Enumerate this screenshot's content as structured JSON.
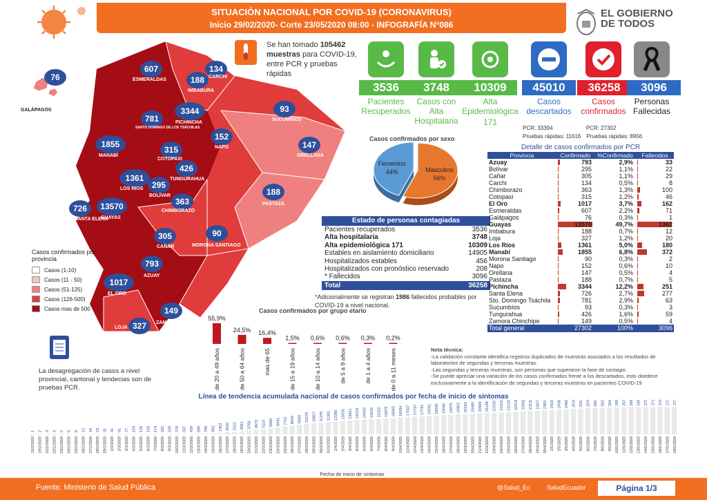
{
  "header": {
    "title": "SITUACIÓN NACIONAL POR  COVID-19 (CORONAVIRUS)",
    "subtitle": "Inicio 29/02/2020- Corte 23/05/2020 08:00  - INFOGRAFÍA N°086"
  },
  "gov_logo": {
    "text": "EL GOBIERNO DE TODOS"
  },
  "samples": {
    "prefix": "Se han tomado",
    "count": "105462",
    "bold": "muestras",
    "rest": "para COVID-19, entre PCR y pruebas rápidas"
  },
  "stats": [
    {
      "value": "3536",
      "label": "Pacientes Recuperados",
      "color": "#59b947",
      "icon": "recovered-icon"
    },
    {
      "value": "3748",
      "label": "Casos con Alta Hospitalaria",
      "color": "#59b947",
      "icon": "hospital-discharge-icon"
    },
    {
      "value": "10309",
      "label": "Alta Epidemiológica",
      "extra": "171",
      "color": "#59b947",
      "icon": "epidemiological-icon"
    },
    {
      "value": "45010",
      "label": "Casos descartados",
      "color": "#2e6bc4",
      "icon": "discarded-icon"
    },
    {
      "value": "36258",
      "label": "Casos confirmados",
      "color": "#e0202b",
      "icon": "confirmed-icon"
    },
    {
      "value": "3096",
      "label": "Personas Fallecidas",
      "color": "#555555",
      "icon": "mourning-ribbon-icon"
    }
  ],
  "pcr_info": {
    "pcr_desc": "PCR: 33394",
    "pcr_conf": "PCR: 27302",
    "rapid_desc": "Pruebas rápidas: 11616",
    "rapid_conf": "Pruebas rápidas: 8956"
  },
  "map": {
    "bubbles": [
      {
        "v": "76"
      },
      {
        "v": "607"
      },
      {
        "v": "134"
      },
      {
        "v": "188"
      },
      {
        "v": "781"
      },
      {
        "v": "3344"
      },
      {
        "v": "93"
      },
      {
        "v": "1855"
      },
      {
        "v": "315"
      },
      {
        "v": "152"
      },
      {
        "v": "147"
      },
      {
        "v": "426"
      },
      {
        "v": "1361"
      },
      {
        "v": "295"
      },
      {
        "v": "188"
      },
      {
        "v": "726"
      },
      {
        "v": "13570"
      },
      {
        "v": "363"
      },
      {
        "v": "305"
      },
      {
        "v": "90"
      },
      {
        "v": "793"
      },
      {
        "v": "1017"
      },
      {
        "v": "149"
      },
      {
        "v": "327"
      }
    ],
    "labels": [
      "GALÁPAGOS",
      "ESMERALDAS",
      "CARCHI",
      "IMBABURA",
      "SANTO DOMINGO DE LOS TSÁCHILAS",
      "PICHINCHA",
      "SUCUMBÍOS",
      "MANABÍ",
      "COTOPAXI",
      "NAPO",
      "ORELLANA",
      "TUNGURAHUA",
      "LOS RIOS",
      "BOLÍVAR",
      "PASTAZA",
      "SANTA ELENA",
      "GUAYAS",
      "CHIMBORAZO",
      "CAÑAR",
      "MORONA SANTIAGO",
      "AZUAY",
      "EL ORO",
      "ZAMORA CHINCHIPE",
      "LOJA"
    ]
  },
  "legend": {
    "title": "Casos confirmados por provincia",
    "items": [
      {
        "label": "Casos (1-10)",
        "color": "#ffffff"
      },
      {
        "label": "Casos (11 - 50)",
        "color": "#f7c1c1"
      },
      {
        "label": "Casos (51-125)",
        "color": "#f08080"
      },
      {
        "label": "Casos (126-500)",
        "color": "#e03c3c"
      },
      {
        "label": "Casos mas de 500",
        "color": "#a50d15"
      }
    ]
  },
  "sex_chart": {
    "title": "Casos confirmados por sexo",
    "slices": [
      {
        "label": "Masculino",
        "pct": "56%",
        "value": 56,
        "color": "#e8772e"
      },
      {
        "label": "Femenino",
        "pct": "44%",
        "value": 44,
        "color": "#5b9bd5"
      }
    ]
  },
  "status_table": {
    "title": "Estado de personas contagiadas",
    "rows": [
      {
        "label": "Pacientes recuperados",
        "value": "3536",
        "bold": false
      },
      {
        "label": "Alta hospitalaria",
        "value": "3748",
        "bold": true
      },
      {
        "label": "Alta epidemiológica 171",
        "value": "10309",
        "bold": true
      },
      {
        "label": "Estables en aislamiento domiciliario",
        "value": "14905",
        "bold": false
      },
      {
        "label": "Hospitalizados estables",
        "value": "456",
        "bold": false
      },
      {
        "label": "Hospitalizados con pronóstico reservado",
        "value": "208",
        "bold": false
      },
      {
        "label": "* Fallecidos",
        "value": "3096",
        "bold": false
      }
    ],
    "total_label": "Total",
    "total_value": "36258"
  },
  "death_note": {
    "pre": "*Adicionalmente se registran",
    "num": "1986",
    "post": "fallecidos probables por COVID-19 a nivel nacional."
  },
  "age_chart": {
    "title": "Casos confirmados por grupo etario",
    "groups": [
      {
        "label": "de 20 a 49 años",
        "pct": "55,9%",
        "value": 55.9
      },
      {
        "label": "de 50 a 64 años",
        "pct": "24,5%",
        "value": 24.5
      },
      {
        "label": "mas de 65",
        "pct": "16,4%",
        "value": 16.4
      },
      {
        "label": "de 15 a 19 años",
        "pct": "1,5%",
        "value": 1.5
      },
      {
        "label": "de 10 a 14 años",
        "pct": "0,6%",
        "value": 0.6
      },
      {
        "label": "de 5 a 9 años",
        "pct": "0,6%",
        "value": 0.6
      },
      {
        "label": "de 1 a 4 años",
        "pct": "0,3%",
        "value": 0.3
      },
      {
        "label": "de 0 a 11 meses",
        "pct": "0,2%",
        "value": 0.2
      }
    ]
  },
  "pcr_note": {
    "text": "La desagregación de casos a nivel provincial, cantonal y tendecias son de pruebas PCR."
  },
  "prov_table": {
    "caption": "Detalle de casos confirmados por PCR",
    "headers": [
      "Provincia",
      "Confirmado",
      "%Confirmado",
      "Fallecidos"
    ],
    "rows": [
      [
        "Azuay",
        "793",
        "2,9%",
        "33",
        true
      ],
      [
        "Bolívar",
        "295",
        "1,1%",
        "22",
        false
      ],
      [
        "Cañar",
        "305",
        "1,1%",
        "29",
        false
      ],
      [
        "Carchi",
        "134",
        "0,5%",
        "8",
        false
      ],
      [
        "Chimborazo",
        "363",
        "1,3%",
        "100",
        false
      ],
      [
        "Cotopaxi",
        "315",
        "1,2%",
        "46",
        false
      ],
      [
        "El Oro",
        "1017",
        "3,7%",
        "162",
        true
      ],
      [
        "Esmeraldas",
        "607",
        "2,2%",
        "71",
        false
      ],
      [
        "Galápagos",
        "76",
        "0,3%",
        "1",
        false
      ],
      [
        "Guayas",
        "13570",
        "49,7%",
        "1362",
        true
      ],
      [
        "Imbabura",
        "188",
        "0,7%",
        "12",
        false
      ],
      [
        "Loja",
        "327",
        "1,2%",
        "20",
        false
      ],
      [
        "Los Ríos",
        "1361",
        "5,0%",
        "180",
        true
      ],
      [
        "Manabí",
        "1855",
        "6,8%",
        "372",
        true
      ],
      [
        "Morona Santiago",
        "90",
        "0,3%",
        "2",
        false
      ],
      [
        "Napo",
        "152",
        "0,6%",
        "10",
        false
      ],
      [
        "Orellana",
        "147",
        "0,5%",
        "4",
        false
      ],
      [
        "Pastaza",
        "188",
        "0,7%",
        "5",
        false
      ],
      [
        "Pichincha",
        "3344",
        "12,2%",
        "251",
        true
      ],
      [
        "Santa Elena",
        "726",
        "2,7%",
        "277",
        false
      ],
      [
        "Sto. Domingo Tsáchila",
        "781",
        "2,9%",
        "63",
        false
      ],
      [
        "Sucumbíos",
        "93",
        "0,3%",
        "3",
        false
      ],
      [
        "Tungurahua",
        "426",
        "1,6%",
        "59",
        false
      ],
      [
        "Zamora Chinchipe",
        "149",
        "0,5%",
        "4",
        false
      ]
    ],
    "total": [
      "Total general",
      "27302",
      "100%",
      "3096"
    ]
  },
  "nota": {
    "title": "Nota técnica:",
    "lines": [
      "-La validación constante identifica registros duplicados de muestras asociados a los resultados de laboratorios de segundas y terceras muestras.",
      "-Las segundas y terceras muestras, son personas que superaron la fase de contagio.",
      "-Se puede apreciar una variación de los casos confirmados frente a los descartados, esto obedece exclusivamente a la identificación de segundas y terceras muestras en pacientes COVID-19"
    ]
  },
  "chart_data": [
    {
      "type": "pie",
      "title": "Casos confirmados por sexo",
      "categories": [
        "Masculino",
        "Femenino"
      ],
      "values": [
        56,
        44
      ]
    },
    {
      "type": "bar",
      "title": "Casos confirmados por grupo etario",
      "categories": [
        "de 20 a 49 años",
        "de 50 a 64 años",
        "mas de 65",
        "de 15 a 19 años",
        "de 10 a 14 años",
        "de 5 a 9 años",
        "de 1 a 4 años",
        "de 0 a 11 meses"
      ],
      "values": [
        55.9,
        24.5,
        16.4,
        1.5,
        0.6,
        0.6,
        0.3,
        0.2
      ]
    },
    {
      "type": "bar",
      "title": "Línea de tendencia acumulada nacional de casos confirmados por fecha de inicio de síntomas",
      "xlabel": "Fecha de inicio de síntomas",
      "categories": [
        "15/2/2020",
        "19/2/2020",
        "21/2/2020",
        "22/2/2020",
        "23/2/2020",
        "24/2/2020",
        "25/2/2020",
        "26/2/2020",
        "27/2/2020",
        "28/2/2020",
        "29/2/2020",
        "1/3/2020",
        "2/3/2020",
        "3/3/2020",
        "4/3/2020",
        "5/3/2020",
        "6/3/2020",
        "7/3/2020",
        "8/3/2020",
        "9/3/2020",
        "10/3/2020",
        "11/3/2020",
        "12/3/2020",
        "13/3/2020",
        "14/3/2020",
        "15/3/2020",
        "16/3/2020",
        "17/3/2020",
        "18/3/2020",
        "19/3/2020",
        "20/3/2020",
        "21/3/2020",
        "22/3/2020",
        "23/3/2020",
        "24/3/2020",
        "25/3/2020",
        "26/3/2020",
        "27/3/2020",
        "28/3/2020",
        "29/3/2020",
        "30/3/2020",
        "31/3/2020",
        "1/4/2020",
        "2/4/2020",
        "3/4/2020",
        "4/4/2020",
        "5/4/2020",
        "6/4/2020",
        "7/4/2020",
        "8/4/2020",
        "9/4/2020",
        "10/4/2020",
        "11/4/2020",
        "12/4/2020",
        "13/4/2020",
        "14/4/2020",
        "15/4/2020",
        "16/4/2020",
        "17/4/2020",
        "18/4/2020",
        "19/4/2020",
        "20/4/2020",
        "21/4/2020",
        "22/4/2020",
        "23/4/2020",
        "24/4/2020",
        "25/4/2020",
        "26/4/2020",
        "27/4/2020",
        "28/4/2020",
        "29/4/2020",
        "30/4/2020",
        "1/5/2020",
        "2/5/2020",
        "3/5/2020",
        "4/5/2020",
        "5/5/2020",
        "6/5/2020",
        "7/5/2020",
        "8/5/2020",
        "9/5/2020",
        "10/5/2020",
        "11/5/2020",
        "12/5/2020",
        "13/5/2020",
        "14/5/2020",
        "15/5/2020",
        "16/5/2020",
        "17/5/2020",
        "18/5/2020"
      ],
      "values": [
        1,
        2,
        3,
        4,
        5,
        6,
        8,
        12,
        16,
        23,
        31,
        41,
        61,
        77,
        104,
        126,
        150,
        174,
        202,
        229,
        278,
        337,
        439,
        589,
        798,
        992,
        1453,
        2020,
        2512,
        3091,
        3765,
        4673,
        5110,
        5960,
        6941,
        7722,
        8600,
        9500,
        10276,
        10827,
        11295,
        11981,
        12380,
        13316,
        13821,
        14218,
        14650,
        15032,
        15322,
        15679,
        16063,
        16594,
        17037,
        17737,
        17791,
        18241,
        18596,
        19040,
        19475,
        19852,
        20163,
        20485,
        20809,
        21148,
        21533,
        21910,
        22133,
        22518,
        22832,
        23130,
        23472,
        23819,
        24106,
        24381,
        24658,
        25315,
        25535,
        25767,
        26047,
        26265,
        26495,
        26644,
        26759,
        26894,
        26983,
        27042,
        27100,
        27171,
        27201,
        27302
      ]
    }
  ],
  "footer": {
    "source": "Fuente: Ministerio de Salud Pública",
    "twitter": "@Salud_Ec",
    "facebook": "SaludEcuador",
    "page": "Página 1/3"
  }
}
